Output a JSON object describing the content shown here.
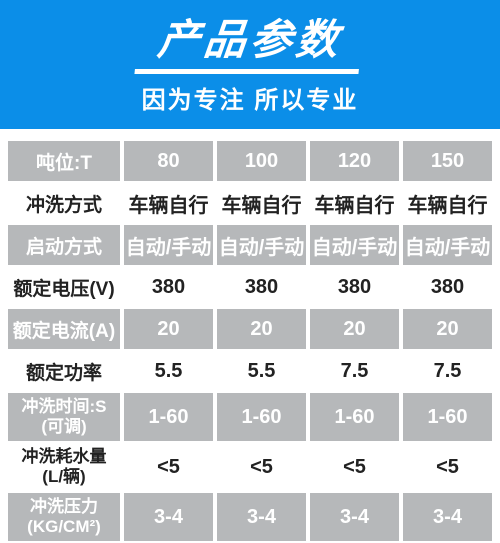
{
  "header": {
    "title": "产品参数",
    "subtitle": "因为专注 所以专业"
  },
  "table": {
    "label_col_width": 112,
    "colors": {
      "header_bg": "#0b8ee8",
      "header_fg": "#ffffff",
      "cell_gray_bg": "#b6b8ba",
      "cell_gray_fg": "#ffffff",
      "cell_white_bg": "#ffffff",
      "cell_fg": "#222222"
    },
    "rows": [
      {
        "label": "吨位:T",
        "label_style": "lh",
        "data_style": "dh",
        "values": [
          "80",
          "100",
          "120",
          "150"
        ]
      },
      {
        "label": "冲洗方式",
        "label_style": "lw",
        "data_style": "dw",
        "values": [
          "车辆自行",
          "车辆自行",
          "车辆自行",
          "车辆自行"
        ]
      },
      {
        "label": "启动方式",
        "label_style": "lh",
        "data_style": "dh",
        "values": [
          "自动/手动",
          "自动/手动",
          "自动/手动",
          "自动/手动"
        ]
      },
      {
        "label": "额定电压(V)",
        "label_style": "lw",
        "data_style": "dw",
        "values": [
          "380",
          "380",
          "380",
          "380"
        ]
      },
      {
        "label": "额定电流(A)",
        "label_style": "lh",
        "data_style": "dh",
        "values": [
          "20",
          "20",
          "20",
          "20"
        ]
      },
      {
        "label": "额定功率",
        "label_style": "lw",
        "data_style": "dw",
        "values": [
          "5.5",
          "5.5",
          "7.5",
          "7.5"
        ]
      },
      {
        "label": "冲洗时间:S\n(可调)",
        "label_style": "lh",
        "data_style": "dh",
        "values": [
          "1-60",
          "1-60",
          "1-60",
          "1-60"
        ],
        "multiline": true
      },
      {
        "label": "冲洗耗水量\n(L/辆)",
        "label_style": "lw",
        "data_style": "dw",
        "values": [
          "<5",
          "<5",
          "<5",
          "<5"
        ],
        "multiline": true
      },
      {
        "label": "冲洗压力\n(KG/CM²)",
        "label_style": "lh",
        "data_style": "dh",
        "values": [
          "3-4",
          "3-4",
          "3-4",
          "3-4"
        ],
        "multiline": true
      }
    ]
  }
}
